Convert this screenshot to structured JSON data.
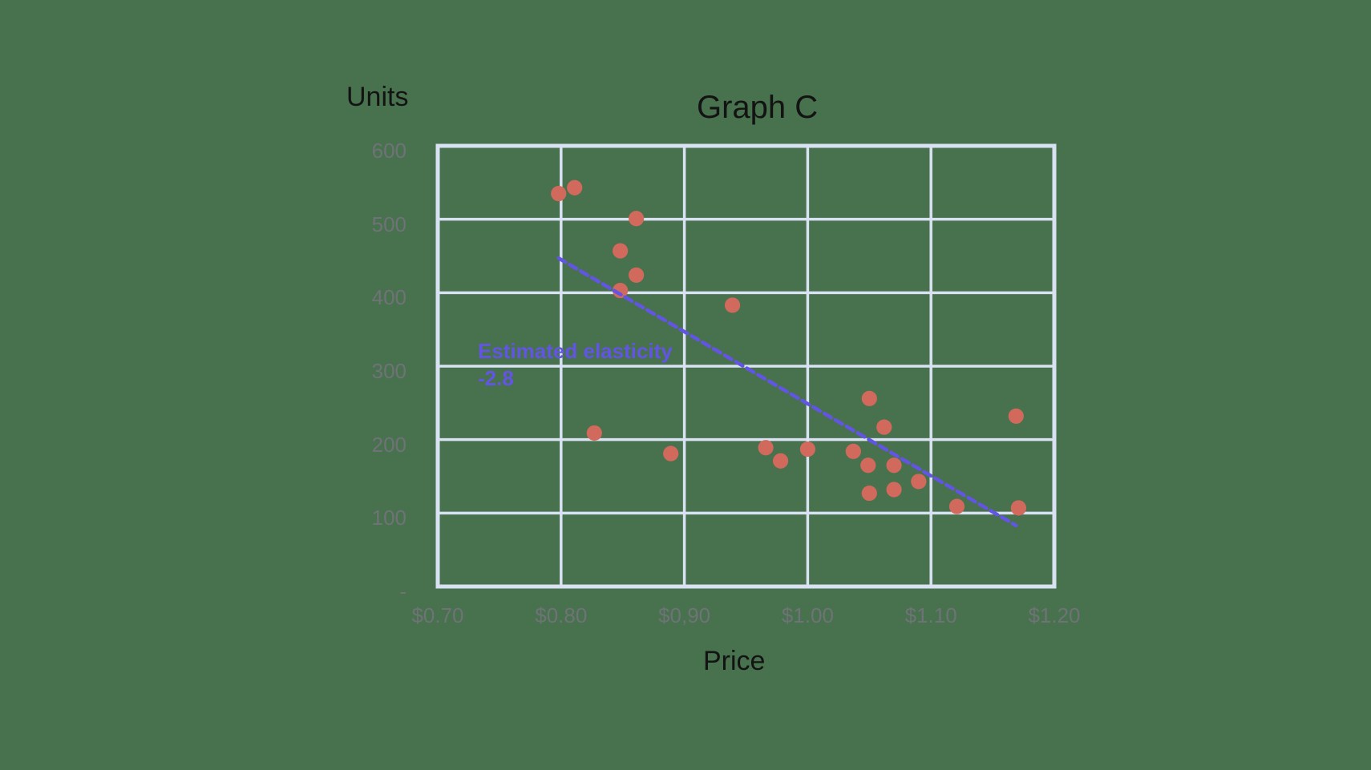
{
  "page": {
    "background": "#48714E"
  },
  "chart_data": {
    "type": "scatter",
    "title": "Graph C",
    "xlabel": "Price",
    "ylabel": "Units",
    "xlim": [
      0.7,
      1.2
    ],
    "ylim": [
      0,
      600
    ],
    "grid": true,
    "legend": "none",
    "x_ticks": {
      "values": [
        0.7,
        0.8,
        0.9,
        1.0,
        1.1,
        1.2
      ],
      "labels": [
        "$0.70",
        "$0.80",
        "$0,90",
        "$1.00",
        "$1.10",
        "$1.20"
      ]
    },
    "y_ticks": {
      "values": [
        600,
        500,
        400,
        300,
        200,
        100,
        0
      ],
      "labels": [
        "600",
        "500",
        "400",
        "300",
        "200",
        "100",
        "-"
      ]
    },
    "points": [
      {
        "price": 0.798,
        "units": 535
      },
      {
        "price": 0.811,
        "units": 543
      },
      {
        "price": 0.861,
        "units": 501
      },
      {
        "price": 0.848,
        "units": 457
      },
      {
        "price": 0.861,
        "units": 424
      },
      {
        "price": 0.848,
        "units": 403
      },
      {
        "price": 0.939,
        "units": 383
      },
      {
        "price": 0.827,
        "units": 209
      },
      {
        "price": 0.889,
        "units": 181
      },
      {
        "price": 0.966,
        "units": 189
      },
      {
        "price": 0.978,
        "units": 171
      },
      {
        "price": 1.0,
        "units": 187
      },
      {
        "price": 1.037,
        "units": 184
      },
      {
        "price": 1.05,
        "units": 256
      },
      {
        "price": 1.062,
        "units": 217
      },
      {
        "price": 1.049,
        "units": 165
      },
      {
        "price": 1.07,
        "units": 165
      },
      {
        "price": 1.09,
        "units": 143
      },
      {
        "price": 1.05,
        "units": 127
      },
      {
        "price": 1.07,
        "units": 132
      },
      {
        "price": 1.121,
        "units": 109
      },
      {
        "price": 1.169,
        "units": 232
      },
      {
        "price": 1.171,
        "units": 107
      }
    ],
    "trendline": {
      "style": "dashed",
      "x1": 0.798,
      "y1": 447,
      "x2": 1.169,
      "y2": 83
    },
    "annotation": {
      "line1": "Estimated elasticity",
      "line2": "-2.8"
    },
    "colors": {
      "background": "#48714E",
      "grid": "#D8E2F2",
      "point": "#D16A5C",
      "trend": "#6355E4",
      "annotation": "#6355E4",
      "title": "#131313",
      "axis_title": "#131313",
      "tick": "#6F7377"
    }
  }
}
